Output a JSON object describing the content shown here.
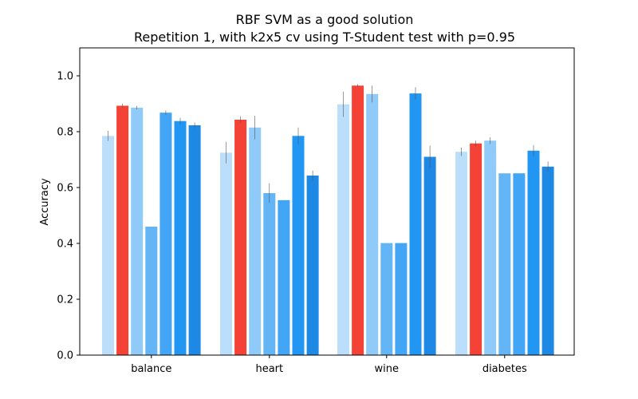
{
  "chart_data": {
    "type": "bar",
    "title": "RBF SVM as a good solution",
    "subtitle": "Repetition 1, with k2x5 cv using T-Student test with p=0.95",
    "xlabel": "",
    "ylabel": "Accuracy",
    "ylim": [
      0,
      1.1
    ],
    "yticks": [
      "0.0",
      "0.2",
      "0.4",
      "0.6",
      "0.8",
      "1.0"
    ],
    "categories": [
      "balance",
      "heart",
      "wine",
      "diabetes"
    ],
    "grid": false,
    "legend": "none",
    "highlight_color": "#f44336",
    "series": [
      {
        "color": "#bbdefb",
        "values": [
          0.785,
          0.725,
          0.898,
          0.728
        ],
        "errors": [
          0.018,
          0.038,
          0.045,
          0.015
        ]
      },
      {
        "color": "#f44336",
        "values": [
          0.893,
          0.843,
          0.965,
          0.758
        ],
        "errors": [
          0.007,
          0.012,
          0.005,
          0.01
        ]
      },
      {
        "color": "#90caf9",
        "values": [
          0.886,
          0.815,
          0.935,
          0.768
        ],
        "errors": [
          0.006,
          0.042,
          0.03,
          0.012
        ]
      },
      {
        "color": "#64b5f6",
        "values": [
          0.46,
          0.58,
          0.401,
          0.651
        ],
        "errors": [
          0.0,
          0.035,
          0.0,
          0.0
        ]
      },
      {
        "color": "#42a5f5",
        "values": [
          0.868,
          0.555,
          0.401,
          0.651
        ],
        "errors": [
          0.008,
          0.0,
          0.0,
          0.0
        ]
      },
      {
        "color": "#2196f3",
        "values": [
          0.838,
          0.785,
          0.937,
          0.732
        ],
        "errors": [
          0.012,
          0.03,
          0.022,
          0.02
        ]
      },
      {
        "color": "#1e88e5",
        "values": [
          0.823,
          0.643,
          0.71,
          0.675
        ],
        "errors": [
          0.01,
          0.018,
          0.04,
          0.018
        ]
      }
    ]
  }
}
